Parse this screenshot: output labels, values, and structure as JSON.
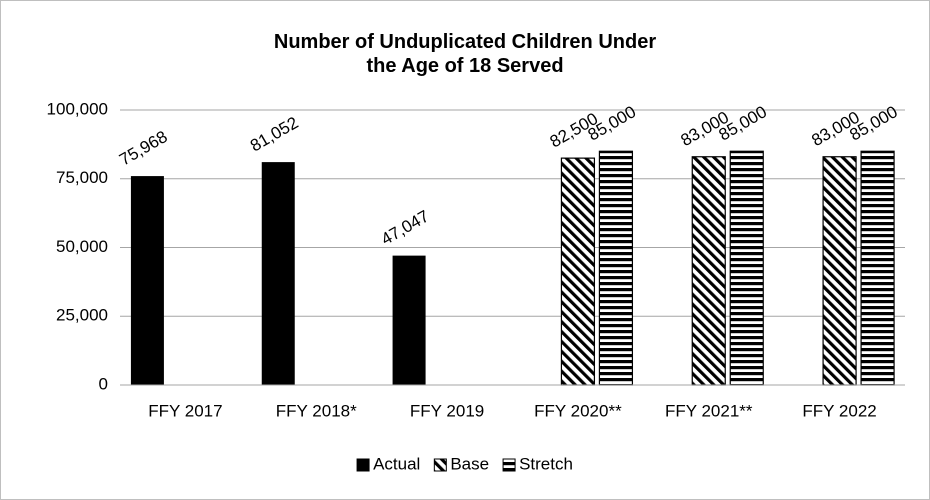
{
  "chart_data": {
    "type": "bar",
    "title": "Number of Unduplicated Children Under the Age of 18 Served",
    "categories": [
      "FFY 2017",
      "FFY 2018*",
      "FFY 2019",
      "FFY 2020**",
      "FFY 2021**",
      "FFY 2022"
    ],
    "series": [
      {
        "name": "Actual",
        "color": "#000000",
        "pattern": "solid",
        "values": [
          75968,
          81052,
          47047,
          null,
          null,
          null
        ],
        "value_labels": [
          "75,968",
          "81,052",
          "47,047",
          null,
          null,
          null
        ]
      },
      {
        "name": "Base",
        "color": "#000000",
        "pattern": "diagonal",
        "values": [
          null,
          null,
          null,
          82500,
          83000,
          83000
        ],
        "value_labels": [
          null,
          null,
          null,
          "82,500",
          "83,000",
          "83,000"
        ]
      },
      {
        "name": "Stretch",
        "color": "#000000",
        "pattern": "horizontal",
        "values": [
          null,
          null,
          null,
          85000,
          85000,
          85000
        ],
        "value_labels": [
          null,
          null,
          null,
          "85,000",
          "85,000",
          "85,000"
        ]
      }
    ],
    "ylim": [
      0,
      100000
    ],
    "yticks": [
      0,
      {
        "value": 25000,
        "label": "25,000"
      },
      {
        "value": 50000,
        "label": "50,000"
      },
      {
        "value": 75000,
        "label": "75,000"
      },
      {
        "value": 100000,
        "label": "100,000"
      }
    ],
    "grid": true,
    "legend": "bottom"
  }
}
